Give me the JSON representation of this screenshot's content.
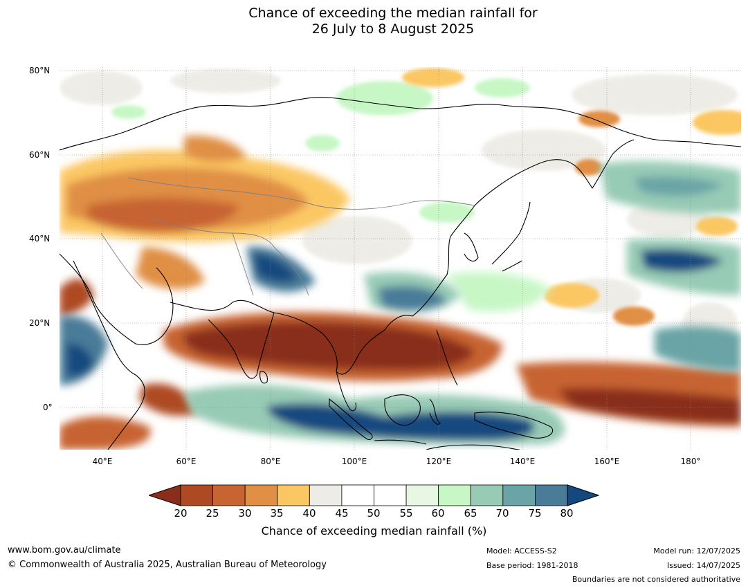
{
  "title": {
    "line1": "Chance of exceeding the median rainfall for",
    "line2": "26 July to 8 August 2025"
  },
  "map": {
    "lat_labels": [
      "80°N",
      "60°N",
      "40°N",
      "20°N",
      "0°"
    ],
    "lon_labels": [
      "40°E",
      "60°E",
      "80°E",
      "100°E",
      "120°E",
      "140°E",
      "160°E",
      "180°"
    ],
    "extent": {
      "lon_min": 30,
      "lon_max": 192,
      "lat_min": -10,
      "lat_max": 80
    },
    "ocean_color": "#ffffff",
    "land_outline": "#000000",
    "borders_color": "#808080"
  },
  "legend": {
    "ticks": [
      "20",
      "25",
      "30",
      "35",
      "40",
      "45",
      "50",
      "55",
      "60",
      "65",
      "70",
      "75",
      "80"
    ],
    "colors": [
      "#8a2d1a",
      "#ae4a23",
      "#c76431",
      "#e08f45",
      "#fbc763",
      "#eeece6",
      "#ffffff",
      "#ffffff",
      "#e8f6e4",
      "#c8f7c6",
      "#98cbb6",
      "#6ba4a6",
      "#4a7b99",
      "#14497f"
    ],
    "label": "Chance of exceeding median rainfall (%)"
  },
  "footer": {
    "website": "www.bom.gov.au/climate",
    "copyright": "© Commonwealth of Australia 2025, Australian Bureau of Meteorology",
    "model": "Model: ACCESS-S2",
    "base_period": "Base period: 1981-2018",
    "model_run": "Model run: 12/07/2025",
    "issued": "Issued: 14/07/2025",
    "disclaimer": "Boundaries are not considered authoritative"
  }
}
